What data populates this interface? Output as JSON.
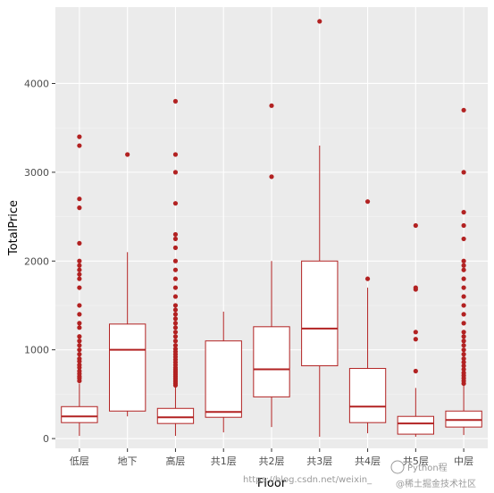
{
  "chart_data": {
    "type": "boxplot",
    "xlabel": "Floor",
    "ylabel": "TotalPrice",
    "ylim": [
      -110,
      4860
    ],
    "y_ticks": [
      0,
      1000,
      2000,
      3000,
      4000
    ],
    "grid": true,
    "colors": {
      "panel_bg": "#ebebeb",
      "grid_major": "#ffffff",
      "grid_minor": "#f5f5f5",
      "box_stroke": "#b22222",
      "box_fill": "#ffffff",
      "outlier": "#b22222",
      "tick_text": "#4d4d4d"
    },
    "categories": [
      "低层",
      "地下",
      "高层",
      "共1层",
      "共2层",
      "共3层",
      "共4层",
      "共5层",
      "中层"
    ],
    "boxes": [
      {
        "category": "低层",
        "whisker_low": 30,
        "q1": 180,
        "median": 250,
        "q3": 360,
        "whisker_high": 620,
        "outliers": [
          650,
          680,
          700,
          730,
          760,
          800,
          830,
          870,
          900,
          950,
          1000,
          1050,
          1100,
          1150,
          1250,
          1300,
          1400,
          1500,
          1700,
          1800,
          1850,
          1900,
          1950,
          2000,
          2200,
          2600,
          2700,
          3300,
          3400
        ]
      },
      {
        "category": "地下",
        "whisker_low": 250,
        "q1": 310,
        "median": 1000,
        "q3": 1290,
        "whisker_high": 2100,
        "outliers": [
          3200
        ]
      },
      {
        "category": "高层",
        "whisker_low": 30,
        "q1": 170,
        "median": 240,
        "q3": 340,
        "whisker_high": 580,
        "outliers": [
          600,
          620,
          640,
          660,
          680,
          700,
          720,
          740,
          760,
          780,
          800,
          830,
          860,
          890,
          920,
          950,
          980,
          1010,
          1050,
          1100,
          1150,
          1200,
          1250,
          1300,
          1350,
          1400,
          1450,
          1500,
          1600,
          1700,
          1800,
          1900,
          2000,
          2150,
          2250,
          2300,
          2650,
          3000,
          3200,
          3800
        ]
      },
      {
        "category": "共1层",
        "whisker_low": 70,
        "q1": 240,
        "median": 300,
        "q3": 1100,
        "whisker_high": 1430,
        "outliers": []
      },
      {
        "category": "共2层",
        "whisker_low": 130,
        "q1": 470,
        "median": 780,
        "q3": 1260,
        "whisker_high": 2000,
        "outliers": [
          2950,
          3750
        ]
      },
      {
        "category": "共3层",
        "whisker_low": 20,
        "q1": 820,
        "median": 1240,
        "q3": 2000,
        "whisker_high": 3300,
        "outliers": [
          4700
        ]
      },
      {
        "category": "共4层",
        "whisker_low": 60,
        "q1": 180,
        "median": 360,
        "q3": 790,
        "whisker_high": 1700,
        "outliers": [
          1800,
          2670
        ]
      },
      {
        "category": "共5层",
        "whisker_low": 20,
        "q1": 50,
        "median": 170,
        "q3": 250,
        "whisker_high": 570,
        "outliers": [
          760,
          1120,
          1200,
          1680,
          1700,
          2400
        ]
      },
      {
        "category": "中层",
        "whisker_low": 40,
        "q1": 130,
        "median": 210,
        "q3": 310,
        "whisker_high": 600,
        "outliers": [
          620,
          650,
          680,
          710,
          740,
          780,
          820,
          860,
          900,
          950,
          1000,
          1050,
          1100,
          1150,
          1200,
          1300,
          1400,
          1500,
          1600,
          1700,
          1800,
          1900,
          1950,
          2000,
          2250,
          2400,
          2550,
          3000,
          3700
        ]
      }
    ]
  },
  "watermark": {
    "line1": "Python程",
    "line2": "@稀土掘金技术社区",
    "url": "https://blog.csdn.net/weixin_"
  }
}
